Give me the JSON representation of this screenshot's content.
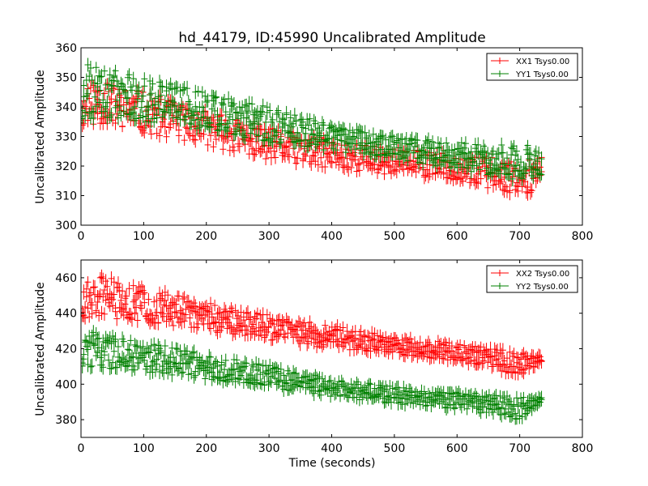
{
  "figure": {
    "title": "hd_44179, ID:45990 Uncalibrated Amplitude",
    "xlabel": "Time (seconds)",
    "ylabel": "Uncalibrated Amplitude"
  },
  "colors": {
    "red": "#ff0000",
    "green": "#008000",
    "frame": "#000000"
  },
  "chart_data": [
    {
      "type": "scatter",
      "title": "hd_44179, ID:45990 Uncalibrated Amplitude",
      "xlabel": "",
      "ylabel": "Uncalibrated Amplitude",
      "xlim": [
        0,
        800
      ],
      "ylim": [
        300,
        360
      ],
      "xticks": [
        0,
        100,
        200,
        300,
        400,
        500,
        600,
        700,
        800
      ],
      "yticks": [
        300,
        310,
        320,
        330,
        340,
        350,
        360
      ],
      "grid": false,
      "legend_position": "top-right",
      "marker": "plus with error bars",
      "series": [
        {
          "name": "XX1 Tsys0.00",
          "color": "#ff0000",
          "x_range": [
            0,
            735
          ],
          "band_low": [
            [
              0,
              333
            ],
            [
              30,
              334
            ],
            [
              100,
              331
            ],
            [
              200,
              327
            ],
            [
              300,
              322
            ],
            [
              400,
              319
            ],
            [
              500,
              317
            ],
            [
              600,
              315
            ],
            [
              700,
              310
            ],
            [
              735,
              312
            ]
          ],
          "band_high": [
            [
              0,
              340
            ],
            [
              10,
              350
            ],
            [
              100,
              345
            ],
            [
              200,
              339
            ],
            [
              300,
              333
            ],
            [
              400,
              329
            ],
            [
              500,
              326
            ],
            [
              600,
              324
            ],
            [
              700,
              322
            ],
            [
              735,
              323
            ]
          ]
        },
        {
          "name": "YY1 Tsys0.00",
          "color": "#008000",
          "x_range": [
            0,
            735
          ],
          "band_low": [
            [
              0,
              335
            ],
            [
              30,
              336
            ],
            [
              100,
              335
            ],
            [
              200,
              332
            ],
            [
              300,
              328
            ],
            [
              400,
              325
            ],
            [
              500,
              322
            ],
            [
              600,
              319
            ],
            [
              700,
              315
            ],
            [
              735,
              317
            ]
          ],
          "band_high": [
            [
              0,
              342
            ],
            [
              10,
              355
            ],
            [
              100,
              350
            ],
            [
              200,
              345
            ],
            [
              300,
              340
            ],
            [
              400,
              334
            ],
            [
              500,
              330
            ],
            [
              600,
              328
            ],
            [
              700,
              327
            ],
            [
              735,
              327
            ]
          ]
        }
      ]
    },
    {
      "type": "scatter",
      "title": "",
      "xlabel": "Time (seconds)",
      "ylabel": "Uncalibrated Amplitude",
      "xlim": [
        0,
        800
      ],
      "ylim": [
        370,
        470
      ],
      "xticks": [
        0,
        100,
        200,
        300,
        400,
        500,
        600,
        700,
        800
      ],
      "yticks": [
        380,
        400,
        420,
        440,
        460
      ],
      "grid": false,
      "legend_position": "top-right",
      "marker": "plus with error bars",
      "series": [
        {
          "name": "XX2 Tsys0.00",
          "color": "#ff0000",
          "x_range": [
            0,
            735
          ],
          "band_low": [
            [
              0,
              436
            ],
            [
              30,
              438
            ],
            [
              100,
              435
            ],
            [
              200,
              430
            ],
            [
              300,
              425
            ],
            [
              400,
              420
            ],
            [
              500,
              417
            ],
            [
              600,
              413
            ],
            [
              700,
              405
            ],
            [
              735,
              412
            ]
          ],
          "band_high": [
            [
              0,
              444
            ],
            [
              10,
              463
            ],
            [
              100,
              455
            ],
            [
              200,
              446
            ],
            [
              300,
              439
            ],
            [
              400,
              433
            ],
            [
              500,
              427
            ],
            [
              600,
              423
            ],
            [
              700,
              418
            ],
            [
              735,
              416
            ]
          ]
        },
        {
          "name": "YY2 Tsys0.00",
          "color": "#008000",
          "x_range": [
            0,
            735
          ],
          "band_low": [
            [
              0,
              410
            ],
            [
              30,
              409
            ],
            [
              100,
              407
            ],
            [
              200,
              403
            ],
            [
              300,
              398
            ],
            [
              400,
              393
            ],
            [
              500,
              389
            ],
            [
              600,
              386
            ],
            [
              700,
              380
            ],
            [
              735,
              388
            ]
          ],
          "band_high": [
            [
              0,
              417
            ],
            [
              10,
              430
            ],
            [
              100,
              424
            ],
            [
              200,
              417
            ],
            [
              300,
              411
            ],
            [
              400,
              403
            ],
            [
              500,
              399
            ],
            [
              600,
              396
            ],
            [
              700,
              393
            ],
            [
              735,
              393
            ]
          ]
        }
      ]
    }
  ]
}
